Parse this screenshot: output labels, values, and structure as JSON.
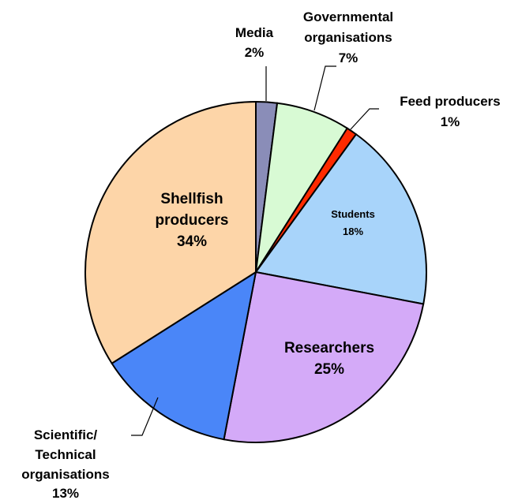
{
  "chart_data": {
    "type": "pie",
    "slices": [
      {
        "name": "Media",
        "value": 2,
        "value_label": "2%",
        "color": "#8A8DB8"
      },
      {
        "name": "Governmental organisations",
        "value": 7,
        "value_label": "7%",
        "color": "#D8FAD4"
      },
      {
        "name": "Feed producers",
        "value": 1,
        "value_label": "1%",
        "color": "#FF2A00"
      },
      {
        "name": "Students",
        "value": 18,
        "value_label": "18%",
        "color": "#A8D4FA"
      },
      {
        "name": "Researchers",
        "value": 25,
        "value_label": "25%",
        "color": "#D4AAF8"
      },
      {
        "name": "Scientific/ Technical organisations",
        "value": 13,
        "value_label": "13%",
        "color": "#4A86F8"
      },
      {
        "name": "Shellfish producers",
        "value": 34,
        "value_label": "34%",
        "color": "#FDD5A8"
      }
    ],
    "labels": {
      "media": {
        "name": "Media",
        "pct": "2%"
      },
      "governmental": {
        "line1": "Governmental",
        "line2": "organisations",
        "pct": "7%"
      },
      "feed": {
        "name": "Feed producers",
        "pct": "1%"
      },
      "students": {
        "name": "Students",
        "pct": "18%"
      },
      "researchers": {
        "name": "Researchers",
        "pct": "25%"
      },
      "scientific": {
        "line1": "Scientific/",
        "line2": "Technical",
        "line3": "organisations",
        "pct": "13%"
      },
      "shellfish": {
        "line1": "Shellfish",
        "line2": "producers",
        "pct": "34%"
      }
    },
    "start": "12 o'clock",
    "direction": "clockwise",
    "legend": "none"
  }
}
